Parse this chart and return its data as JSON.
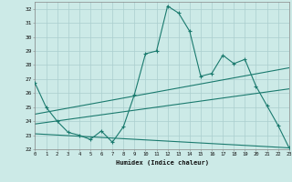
{
  "x": [
    0,
    1,
    2,
    3,
    4,
    5,
    6,
    7,
    8,
    9,
    10,
    11,
    12,
    13,
    14,
    15,
    16,
    17,
    18,
    19,
    20,
    21,
    22,
    23
  ],
  "line1": [
    26.7,
    25.0,
    24.0,
    23.2,
    23.0,
    22.7,
    23.3,
    22.5,
    23.6,
    25.9,
    28.8,
    29.0,
    32.2,
    31.7,
    30.4,
    27.2,
    27.4,
    28.7,
    28.1,
    28.4,
    26.5,
    25.1,
    23.7,
    22.1
  ],
  "line2_x": [
    0,
    23
  ],
  "line2_y": [
    24.5,
    27.8
  ],
  "line3_x": [
    0,
    23
  ],
  "line3_y": [
    23.8,
    26.3
  ],
  "line4_x": [
    0,
    23
  ],
  "line4_y": [
    23.1,
    22.1
  ],
  "bg_color": "#cceae7",
  "line_color": "#1a7a6e",
  "grid_color": "#aacece",
  "xlim": [
    0,
    23
  ],
  "ylim": [
    22,
    32.5
  ],
  "yticks": [
    22,
    23,
    24,
    25,
    26,
    27,
    28,
    29,
    30,
    31,
    32
  ],
  "xticks": [
    0,
    1,
    2,
    3,
    4,
    5,
    6,
    7,
    8,
    9,
    10,
    11,
    12,
    13,
    14,
    15,
    16,
    17,
    18,
    19,
    20,
    21,
    22,
    23
  ],
  "xlabel": "Humidex (Indice chaleur)"
}
